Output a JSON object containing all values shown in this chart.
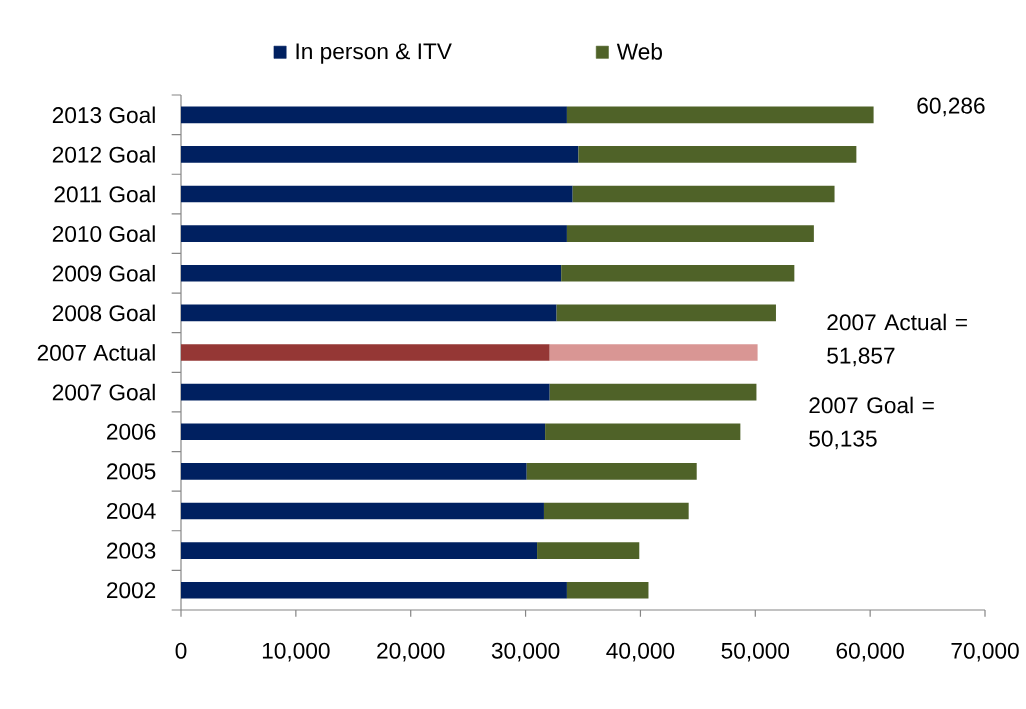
{
  "chart_data": {
    "type": "bar",
    "orientation": "horizontal",
    "stacked": true,
    "categories": [
      "2013 Goal",
      "2012 Goal",
      "2011 Goal",
      "2010 Goal",
      "2009 Goal",
      "2008 Goal",
      "2007 Actual",
      "2007 Goal",
      "2006",
      "2005",
      "2004",
      "2003",
      "2002"
    ],
    "series": [
      {
        "name": "In person & ITV",
        "color": "#002060",
        "colors": [
          "#002060",
          "#002060",
          "#002060",
          "#002060",
          "#002060",
          "#002060",
          "#953735",
          "#002060",
          "#002060",
          "#002060",
          "#002060",
          "#002060",
          "#002060"
        ],
        "values": [
          33600,
          34600,
          34100,
          33600,
          33100,
          32700,
          32100,
          32100,
          31700,
          30100,
          31600,
          31000,
          33600
        ]
      },
      {
        "name": "Web",
        "color": "#4f6228",
        "colors": [
          "#4f6228",
          "#4f6228",
          "#4f6228",
          "#4f6228",
          "#4f6228",
          "#4f6228",
          "#d99694",
          "#4f6228",
          "#4f6228",
          "#4f6228",
          "#4f6228",
          "#4f6228",
          "#4f6228"
        ],
        "values": [
          26700,
          24200,
          22800,
          21500,
          20300,
          19100,
          18100,
          18000,
          17000,
          14800,
          12600,
          8900,
          7100
        ]
      }
    ],
    "xlim": [
      0,
      70000
    ],
    "xticks": [
      0,
      {
        "value": 10000,
        "label": "10,000"
      },
      {
        "value": 20000,
        "label": "20,000"
      },
      {
        "value": 30000,
        "label": "30,000"
      },
      {
        "value": 40000,
        "label": "40,000"
      },
      {
        "value": 50000,
        "label": "50,000"
      },
      {
        "value": 60000,
        "label": "60,000"
      },
      {
        "value": 70000,
        "label": "70,000"
      }
    ],
    "legend": "top",
    "annotations": [
      "60,286",
      "2007 Actual = 51,857",
      "2007 Goal = 50,135"
    ]
  }
}
